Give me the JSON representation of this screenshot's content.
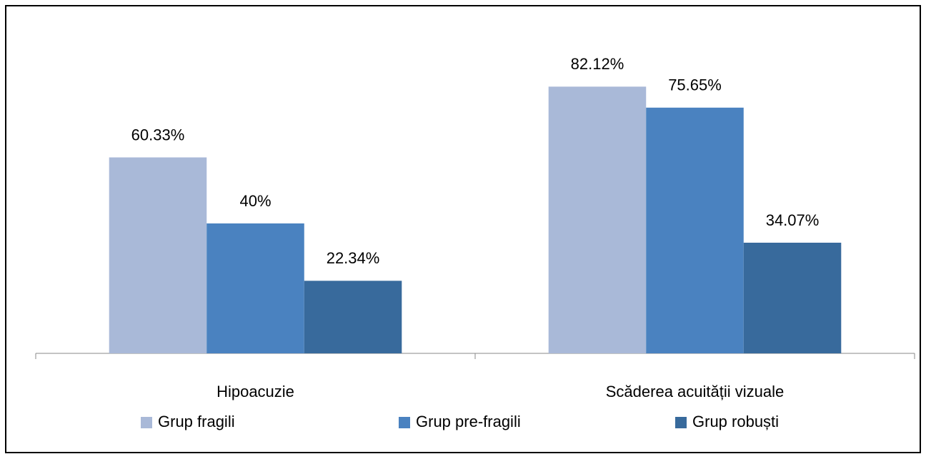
{
  "chart_data": {
    "type": "bar",
    "categories": [
      "Hipoacuzie",
      "Scăderea acuității vizuale"
    ],
    "series": [
      {
        "name": "Grup fragili",
        "color": "#a9b9d8",
        "values": [
          60.33,
          82.12
        ],
        "value_labels": [
          "60.33%",
          "82.12%"
        ]
      },
      {
        "name": "Grup pre-fragili",
        "color": "#4a82c0",
        "values": [
          40,
          75.65
        ],
        "value_labels": [
          "40%",
          "75.65%"
        ]
      },
      {
        "name": "Grup robuști",
        "color": "#386a9c",
        "values": [
          22.34,
          34.07
        ],
        "value_labels": [
          "22.34%",
          "34.07%"
        ]
      }
    ],
    "ylim": [
      0,
      100
    ],
    "legend": "bottom"
  }
}
